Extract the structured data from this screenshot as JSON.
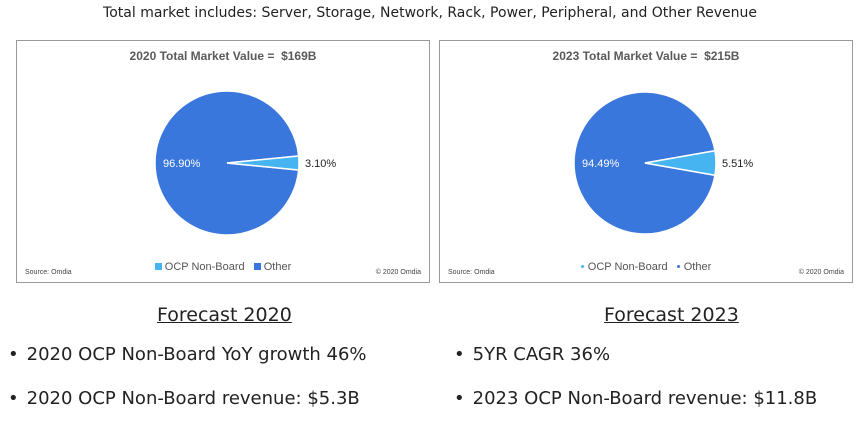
{
  "header": "Total market includes: Server, Storage, Network, Rack, Power, Peripheral, and Other Revenue",
  "colors": {
    "ocp": "#46b4f0",
    "other": "#3a77dc"
  },
  "chart_data": [
    {
      "type": "pie",
      "title": "2020 Total Market Value =  $169B",
      "slices": [
        {
          "name": "OCP Non-Board",
          "value": 3.1,
          "label": "3.10%"
        },
        {
          "name": "Other",
          "value": 96.9,
          "label": "96.90%"
        }
      ],
      "legend": [
        "OCP Non-Board",
        "Other"
      ],
      "legend_position": "bottom",
      "source": "Source: Omdia",
      "copyright": "© 2020 Omdia"
    },
    {
      "type": "pie",
      "title": "2023 Total Market Value =  $215B",
      "slices": [
        {
          "name": "OCP Non-Board",
          "value": 5.51,
          "label": "5.51%"
        },
        {
          "name": "Other",
          "value": 94.49,
          "label": "94.49%"
        }
      ],
      "legend": [
        "OCP Non-Board",
        "Other"
      ],
      "legend_position": "bottom",
      "source": "Source: Omdia",
      "copyright": "© 2020 Omdia"
    }
  ],
  "forecast_2020": {
    "title": "Forecast 2020",
    "bullets": [
      "2020 OCP Non-Board YoY growth 46%",
      "2020 OCP Non-Board revenue: $5.3B"
    ]
  },
  "forecast_2023": {
    "title": "Forecast 2023",
    "bullets": [
      "5YR CAGR  36%",
      "2023 OCP Non-Board revenue: $11.8B"
    ]
  }
}
